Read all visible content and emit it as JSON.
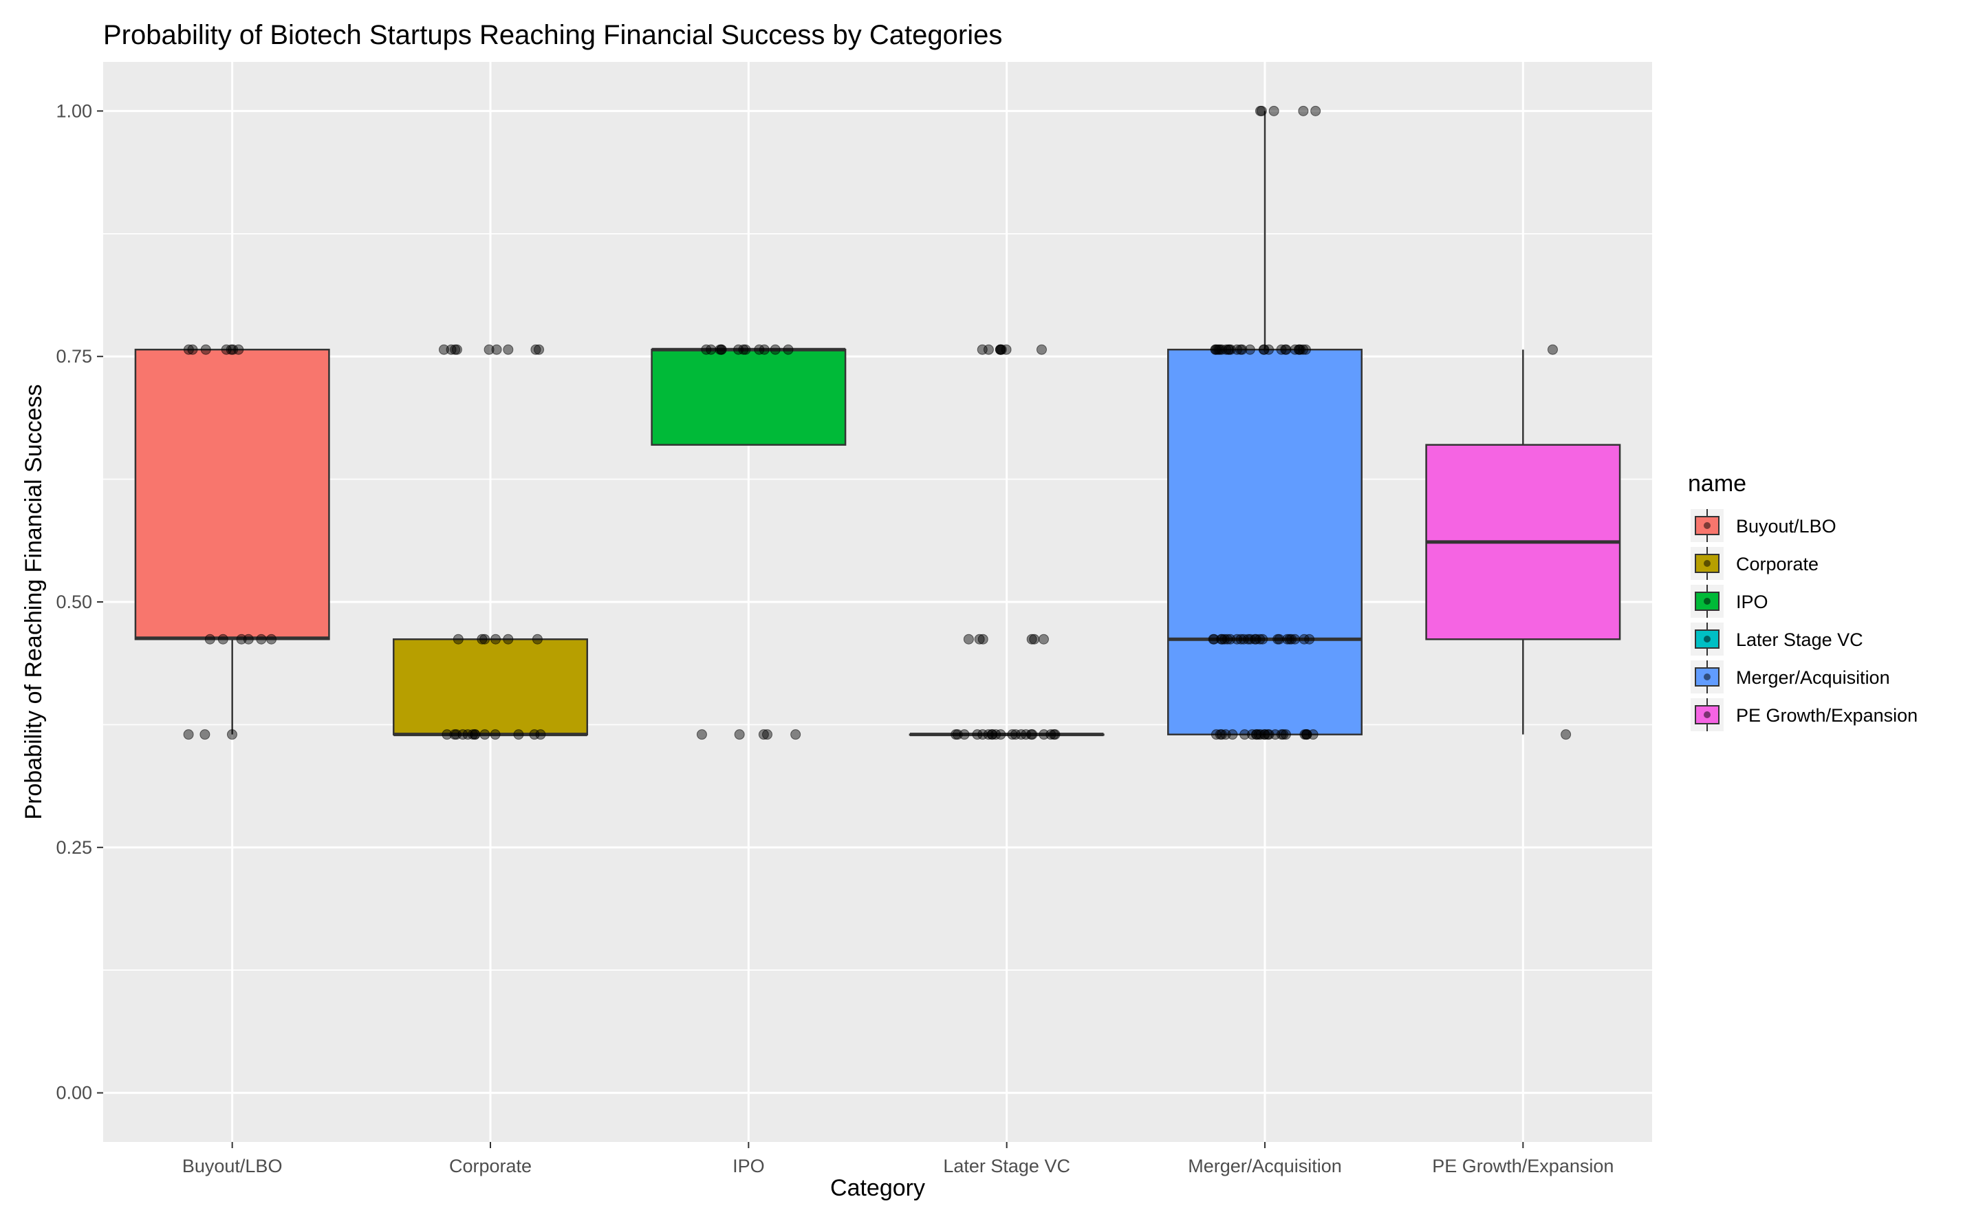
{
  "chart_data": {
    "type": "box",
    "title": "Probability of Biotech Startups Reaching Financial Success by Categories",
    "xlabel": "Category",
    "ylabel": "Probability of Reaching Financial Success",
    "ylim": [
      -0.05,
      1.05
    ],
    "yticks": [
      0.0,
      0.25,
      0.5,
      0.75,
      1.0
    ],
    "ytick_labels": [
      "0.00",
      "0.25",
      "0.50",
      "0.75",
      "1.00"
    ],
    "categories": [
      "Buyout/LBO",
      "Corporate",
      "IPO",
      "Later Stage VC",
      "Merger/Acquisition",
      "PE Growth/Expansion"
    ],
    "grid": true,
    "legend_position": "right",
    "legend_title": "name",
    "series": [
      {
        "name": "Buyout/LBO",
        "color": "#F8766D",
        "box": {
          "whisker_low": 0.365,
          "q1": 0.462,
          "median": 0.463,
          "q3": 0.757,
          "whisker_high": 0.757
        },
        "points": [
          0.757,
          0.757,
          0.757,
          0.757,
          0.757,
          0.757,
          0.757,
          0.462,
          0.462,
          0.462,
          0.462,
          0.462,
          0.462,
          0.365,
          0.365,
          0.365
        ]
      },
      {
        "name": "Corporate",
        "color": "#B79F00",
        "box": {
          "whisker_low": 0.365,
          "q1": 0.365,
          "median": 0.365,
          "q3": 0.462,
          "whisker_high": 0.462
        },
        "points": [
          0.757,
          0.757,
          0.757,
          0.757,
          0.757,
          0.757,
          0.757,
          0.757,
          0.757,
          0.462,
          0.462,
          0.462,
          0.462,
          0.462,
          0.462,
          0.365,
          0.365,
          0.365,
          0.365,
          0.365,
          0.365,
          0.365,
          0.365,
          0.365,
          0.365,
          0.365,
          0.365,
          0.365
        ]
      },
      {
        "name": "IPO",
        "color": "#00BA38",
        "box": {
          "whisker_low": 0.66,
          "q1": 0.66,
          "median": 0.757,
          "q3": 0.757,
          "whisker_high": 0.757
        },
        "points": [
          0.757,
          0.757,
          0.757,
          0.757,
          0.757,
          0.757,
          0.757,
          0.757,
          0.757,
          0.757,
          0.757,
          0.757,
          0.365,
          0.365,
          0.365,
          0.365,
          0.365
        ]
      },
      {
        "name": "Later Stage VC",
        "color": "#00BFC4",
        "box": {
          "whisker_low": 0.365,
          "q1": 0.365,
          "median": 0.365,
          "q3": 0.365,
          "whisker_high": 0.365
        },
        "points": [
          0.757,
          0.757,
          0.757,
          0.757,
          0.757,
          0.757,
          0.757,
          0.757,
          0.462,
          0.462,
          0.462,
          0.462,
          0.462,
          0.462,
          0.365,
          0.365,
          0.365,
          0.365,
          0.365,
          0.365,
          0.365,
          0.365,
          0.365,
          0.365,
          0.365,
          0.365,
          0.365,
          0.365,
          0.365,
          0.365,
          0.365,
          0.365,
          0.365,
          0.365
        ]
      },
      {
        "name": "Merger/Acquisition",
        "color": "#619CFF",
        "box": {
          "whisker_low": 0.365,
          "q1": 0.365,
          "median": 0.462,
          "q3": 0.757,
          "whisker_high": 1.0
        },
        "points": [
          1.0,
          1.0,
          1.0,
          1.0,
          1.0,
          0.757,
          0.757,
          0.757,
          0.757,
          0.757,
          0.757,
          0.757,
          0.757,
          0.757,
          0.757,
          0.757,
          0.757,
          0.757,
          0.757,
          0.757,
          0.757,
          0.757,
          0.757,
          0.757,
          0.757,
          0.757,
          0.757,
          0.757,
          0.757,
          0.757,
          0.757,
          0.462,
          0.462,
          0.462,
          0.462,
          0.462,
          0.462,
          0.462,
          0.462,
          0.462,
          0.462,
          0.462,
          0.462,
          0.462,
          0.462,
          0.462,
          0.462,
          0.462,
          0.462,
          0.462,
          0.462,
          0.462,
          0.462,
          0.462,
          0.462,
          0.365,
          0.365,
          0.365,
          0.365,
          0.365,
          0.365,
          0.365,
          0.365,
          0.365,
          0.365,
          0.365,
          0.365,
          0.365,
          0.365,
          0.365,
          0.365,
          0.365,
          0.365,
          0.365,
          0.365,
          0.365,
          0.365,
          0.365,
          0.365
        ]
      },
      {
        "name": "PE Growth/Expansion",
        "color": "#F564E3",
        "box": {
          "whisker_low": 0.365,
          "q1": 0.462,
          "median": 0.561,
          "q3": 0.66,
          "whisker_high": 0.757
        },
        "points": [
          0.757,
          0.365
        ]
      }
    ]
  }
}
